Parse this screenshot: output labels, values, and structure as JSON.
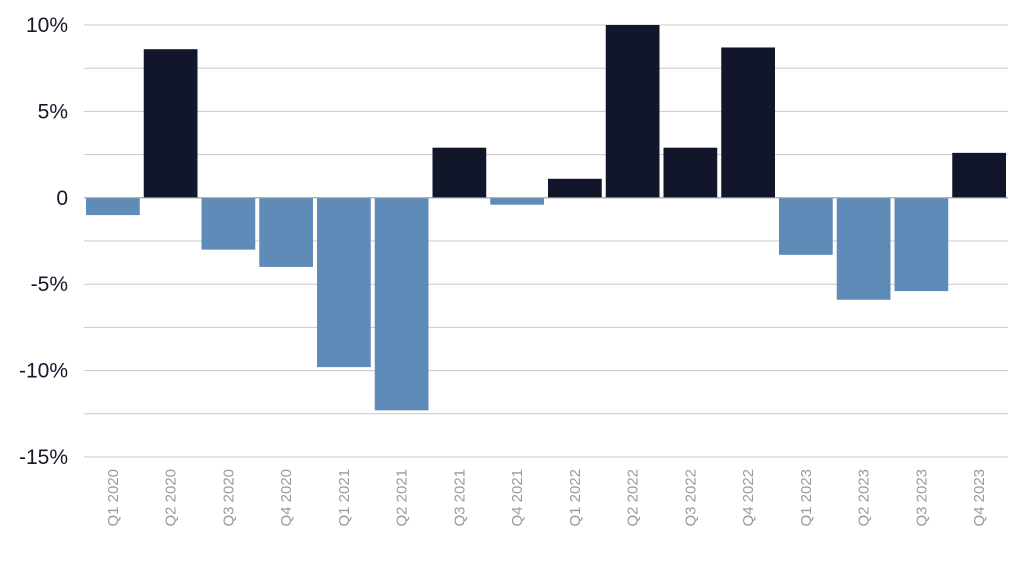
{
  "chart_data": {
    "type": "bar",
    "title": "",
    "xlabel": "",
    "ylabel": "",
    "ylim": [
      -15,
      10
    ],
    "grid": true,
    "legend": "none",
    "y_ticks": [
      {
        "value": 10,
        "label": "10%"
      },
      {
        "value": 5,
        "label": "5%"
      },
      {
        "value": 0,
        "label": "0"
      },
      {
        "value": -5,
        "label": "-5%"
      },
      {
        "value": -10,
        "label": "-10%"
      },
      {
        "value": -15,
        "label": "-15%"
      }
    ],
    "categories": [
      "Q1 2020",
      "Q2 2020",
      "Q3 2020",
      "Q4 2020",
      "Q1 2021",
      "Q2 2021",
      "Q3 2021",
      "Q4 2021",
      "Q1 2022",
      "Q2 2022",
      "Q3 2022",
      "Q4 2022",
      "Q1 2023",
      "Q2 2023",
      "Q3 2023",
      "Q4 2023"
    ],
    "values": [
      -1.0,
      8.6,
      -3.0,
      -4.0,
      -9.8,
      -12.3,
      2.9,
      -0.4,
      1.1,
      10.0,
      2.9,
      8.7,
      -3.3,
      -5.9,
      -5.4,
      2.6
    ],
    "colors": {
      "positive": "#12162a",
      "negative": "#5f8bb8"
    }
  }
}
